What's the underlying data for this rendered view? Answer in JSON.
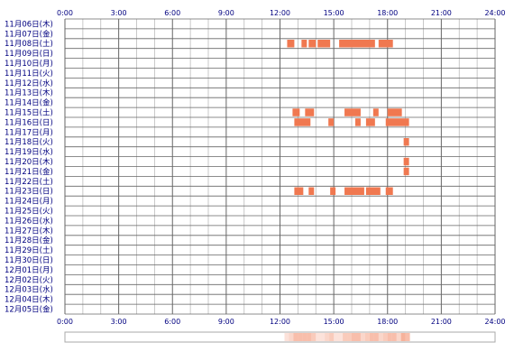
{
  "chart_data": {
    "type": "heatmap",
    "title": "",
    "xlabel": "",
    "ylabel": "",
    "xlim": [
      0,
      24
    ],
    "x_ticks": [
      "0:00",
      "3:00",
      "6:00",
      "9:00",
      "12:00",
      "15:00",
      "18:00",
      "21:00",
      "24:00"
    ],
    "grid": true,
    "colors": {
      "activity": "#f07850",
      "grid_major": "#666666",
      "grid_minor": "#bbbbbb",
      "labels": "#000080",
      "summary_border": "#aaaaaa",
      "summary_fill": "#f07850"
    },
    "days": [
      {
        "label": "11月06日(木)",
        "blocks": []
      },
      {
        "label": "11月07日(金)",
        "blocks": []
      },
      {
        "label": "11月08日(土)",
        "blocks": [
          [
            12.4,
            12.8
          ],
          [
            13.2,
            13.5
          ],
          [
            13.6,
            14.0
          ],
          [
            14.1,
            14.8
          ],
          [
            15.3,
            17.3
          ],
          [
            17.5,
            18.3
          ]
        ]
      },
      {
        "label": "11月09日(日)",
        "blocks": []
      },
      {
        "label": "11月10日(月)",
        "blocks": []
      },
      {
        "label": "11月11日(火)",
        "blocks": []
      },
      {
        "label": "11月12日(水)",
        "blocks": []
      },
      {
        "label": "11月13日(木)",
        "blocks": []
      },
      {
        "label": "11月14日(金)",
        "blocks": []
      },
      {
        "label": "11月15日(土)",
        "blocks": [
          [
            12.7,
            13.1
          ],
          [
            13.4,
            13.9
          ],
          [
            15.6,
            16.5
          ],
          [
            17.2,
            17.5
          ],
          [
            18.0,
            18.8
          ]
        ]
      },
      {
        "label": "11月16日(日)",
        "blocks": [
          [
            12.8,
            13.7
          ],
          [
            14.7,
            15.0
          ],
          [
            16.2,
            16.5
          ],
          [
            16.8,
            17.3
          ],
          [
            17.9,
            19.2
          ]
        ]
      },
      {
        "label": "11月17日(月)",
        "blocks": []
      },
      {
        "label": "11月18日(火)",
        "blocks": [
          [
            18.9,
            19.2
          ]
        ]
      },
      {
        "label": "11月19日(水)",
        "blocks": []
      },
      {
        "label": "11月20日(木)",
        "blocks": [
          [
            18.9,
            19.2
          ]
        ]
      },
      {
        "label": "11月21日(金)",
        "blocks": [
          [
            18.9,
            19.2
          ]
        ]
      },
      {
        "label": "11月22日(土)",
        "blocks": []
      },
      {
        "label": "11月23日(日)",
        "blocks": [
          [
            12.8,
            13.3
          ],
          [
            13.6,
            13.9
          ],
          [
            14.8,
            15.1
          ],
          [
            15.6,
            16.7
          ],
          [
            16.8,
            17.6
          ],
          [
            17.9,
            18.3
          ]
        ]
      },
      {
        "label": "11月24日(月)",
        "blocks": []
      },
      {
        "label": "11月25日(火)",
        "blocks": []
      },
      {
        "label": "11月26日(水)",
        "blocks": []
      },
      {
        "label": "11月27日(木)",
        "blocks": []
      },
      {
        "label": "11月28日(金)",
        "blocks": []
      },
      {
        "label": "11月29日(土)",
        "blocks": []
      },
      {
        "label": "11月30日(日)",
        "blocks": []
      },
      {
        "label": "12月01日(月)",
        "blocks": []
      },
      {
        "label": "12月02日(火)",
        "blocks": []
      },
      {
        "label": "12月03日(水)",
        "blocks": []
      },
      {
        "label": "12月04日(木)",
        "blocks": []
      },
      {
        "label": "12月05日(金)",
        "blocks": []
      }
    ]
  }
}
